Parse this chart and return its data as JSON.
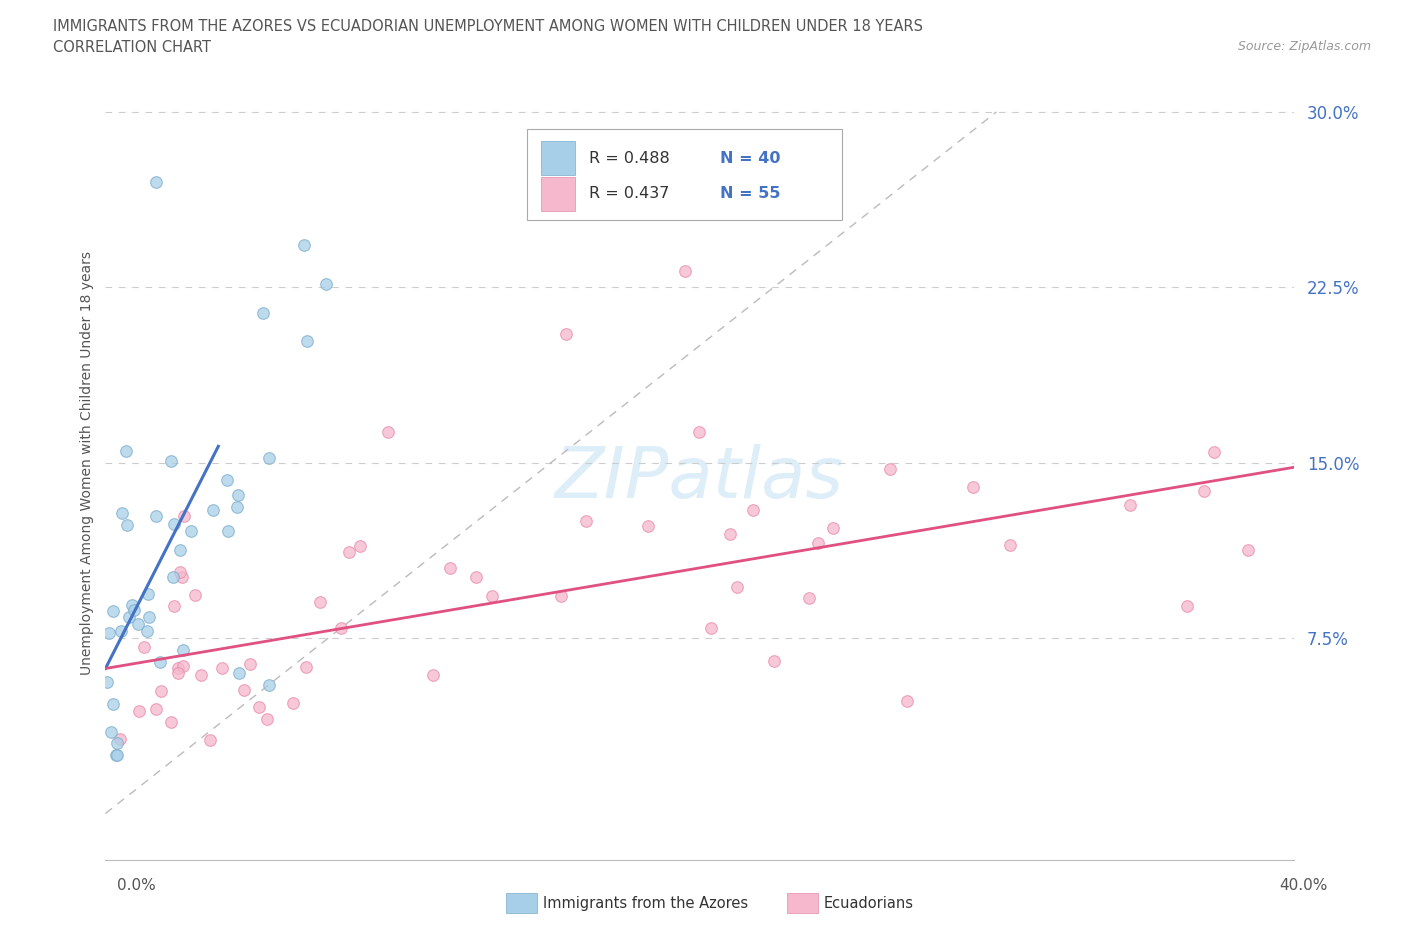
{
  "title_line1": "IMMIGRANTS FROM THE AZORES VS ECUADORIAN UNEMPLOYMENT AMONG WOMEN WITH CHILDREN UNDER 18 YEARS",
  "title_line2": "CORRELATION CHART",
  "source_text": "Source: ZipAtlas.com",
  "xlabel_bottom_left": "0.0%",
  "xlabel_bottom_right": "40.0%",
  "ylabel_label": "Unemployment Among Women with Children Under 18 years",
  "ytick_labels": [
    "7.5%",
    "15.0%",
    "22.5%",
    "30.0%"
  ],
  "ytick_values": [
    0.075,
    0.15,
    0.225,
    0.3
  ],
  "legend_r1": "R = 0.488",
  "legend_n1": "N = 40",
  "legend_r2": "R = 0.437",
  "legend_n2": "N = 55",
  "color_azores": "#a8cfe8",
  "color_azores_edge": "#7aaccc",
  "color_ecuador": "#f5b8cc",
  "color_ecuador_edge": "#e88aaa",
  "color_azores_line": "#4472c4",
  "color_ecuador_line": "#e05080",
  "color_legend_text_r": "#333333",
  "color_legend_text_n": "#4472c4",
  "background_color": "#ffffff",
  "watermark_text": "ZIPatlas",
  "watermark_color": "#ddeef8",
  "grid_color": "#cccccc",
  "diagonal_color": "#bbbbbb",
  "ytick_color": "#4472c4",
  "xlim": [
    0.0,
    0.4
  ],
  "ylim": [
    -0.02,
    0.32
  ]
}
